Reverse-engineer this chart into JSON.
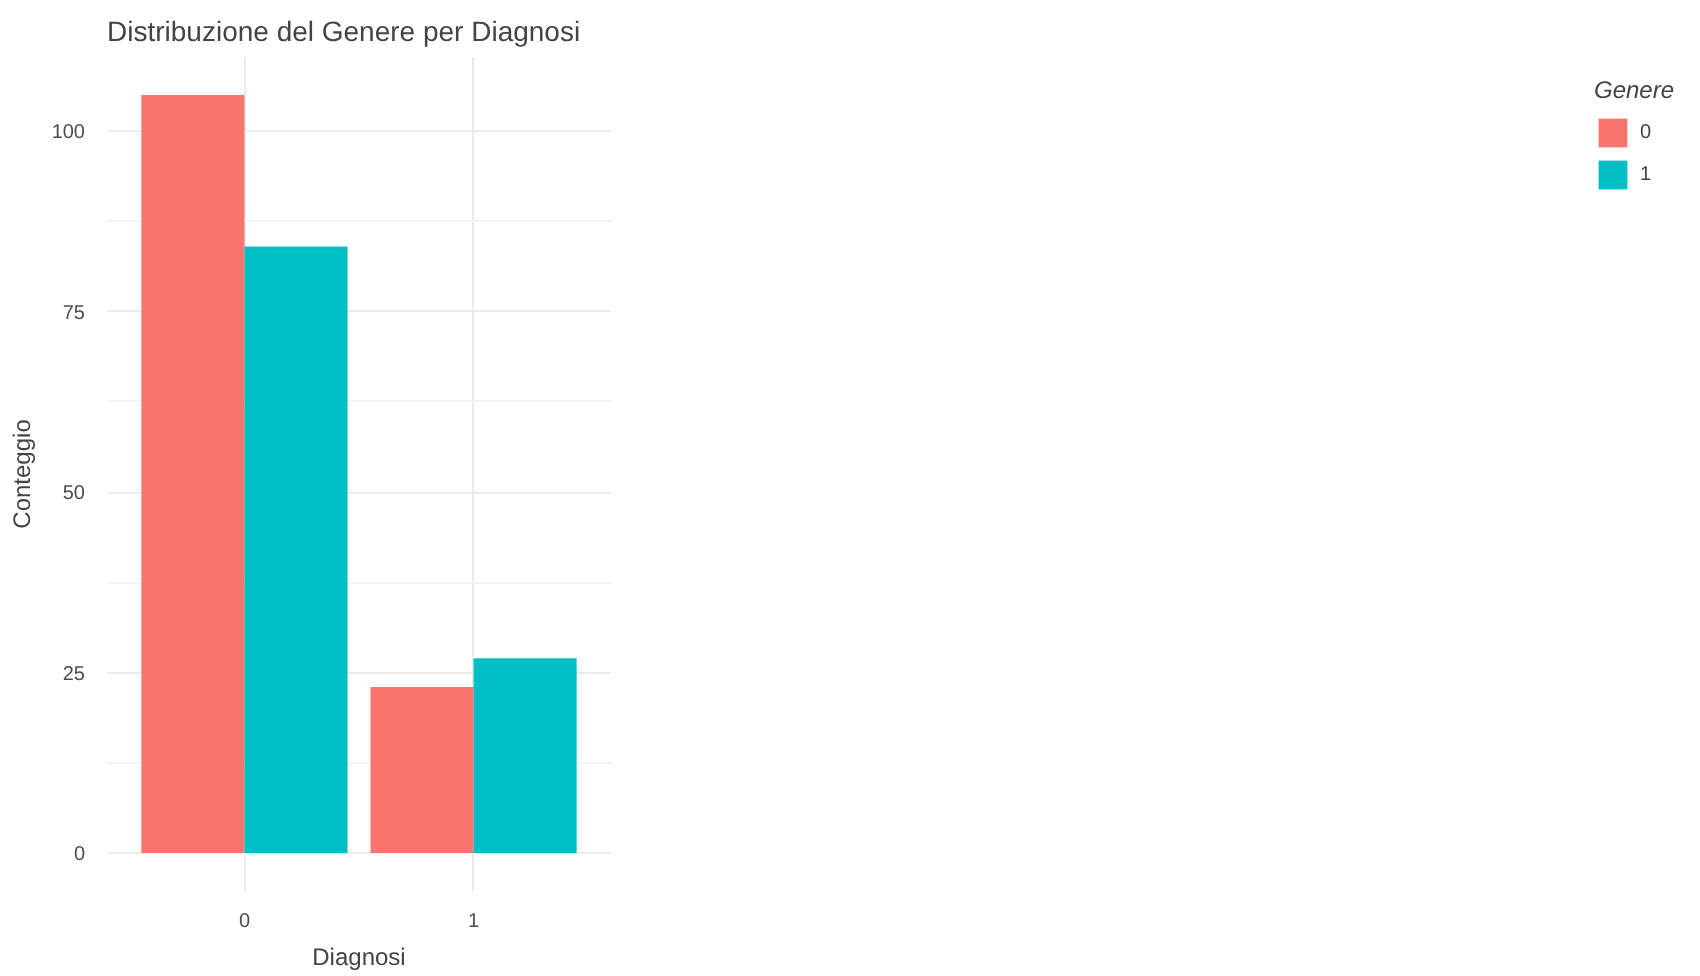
{
  "chart_data": {
    "type": "bar",
    "title": "Distribuzione del Genere per Diagnosi",
    "xlabel": "Diagnosi",
    "ylabel": "Conteggio",
    "legend_title": "Genere",
    "categories": [
      "0",
      "1"
    ],
    "series": [
      {
        "name": "0",
        "color": "#f8766d",
        "values": [
          105,
          23
        ]
      },
      {
        "name": "1",
        "color": "#00bfc4",
        "values": [
          84,
          27
        ]
      }
    ],
    "ylim": [
      -5.25,
      110.25
    ],
    "yticks": [
      0,
      25,
      50,
      75,
      100
    ],
    "grid": true,
    "legend": "right"
  }
}
